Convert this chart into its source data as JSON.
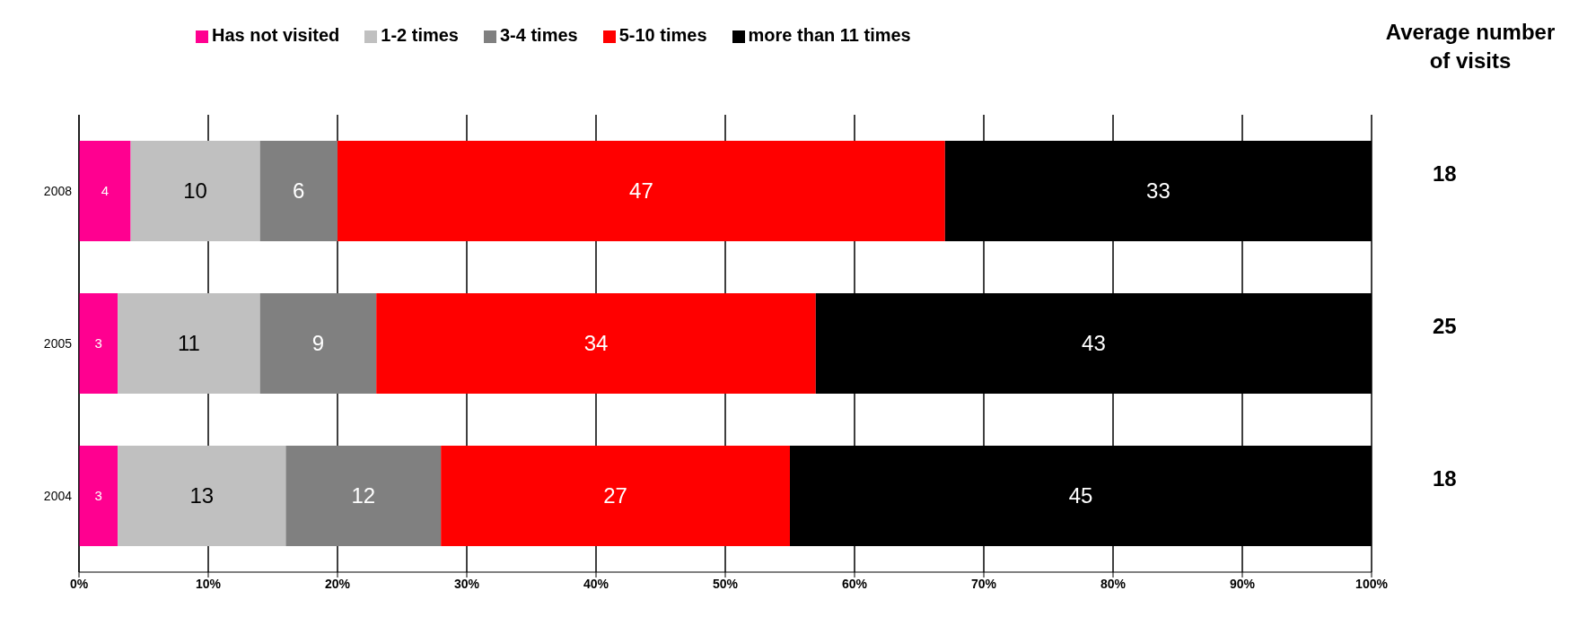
{
  "chart_data": {
    "type": "bar",
    "orientation": "horizontal",
    "stacked": true,
    "categories": [
      "2008",
      "2005",
      "2004"
    ],
    "series": [
      {
        "name": "Has not visited",
        "color": "#ff0090",
        "values": [
          4,
          3,
          3
        ]
      },
      {
        "name": "1-2 times",
        "color": "#c0c0c0",
        "values": [
          10,
          11,
          13
        ]
      },
      {
        "name": "3-4 times",
        "color": "#808080",
        "values": [
          6,
          9,
          12
        ]
      },
      {
        "name": "5-10 times",
        "color": "#ff0000",
        "values": [
          47,
          34,
          27
        ]
      },
      {
        "name": "more than 11 times",
        "color": "#000000",
        "values": [
          33,
          43,
          45
        ]
      }
    ],
    "xlim": [
      0,
      100
    ],
    "xticks": [
      {
        "value": 0,
        "label": "0%"
      },
      {
        "value": 10,
        "label": "10%"
      },
      {
        "value": 20,
        "label": "20%"
      },
      {
        "value": 30,
        "label": "30%"
      },
      {
        "value": 40,
        "label": "40%"
      },
      {
        "value": 50,
        "label": "50%"
      },
      {
        "value": 60,
        "label": "60%"
      },
      {
        "value": 70,
        "label": "70%"
      },
      {
        "value": 80,
        "label": "80%"
      },
      {
        "value": 90,
        "label": "90%"
      },
      {
        "value": 100,
        "label": "100%"
      }
    ],
    "grid": "x",
    "legend": "top",
    "data_labels": true,
    "annotations": [
      "Average number of visits",
      "18",
      "25",
      "18"
    ]
  }
}
